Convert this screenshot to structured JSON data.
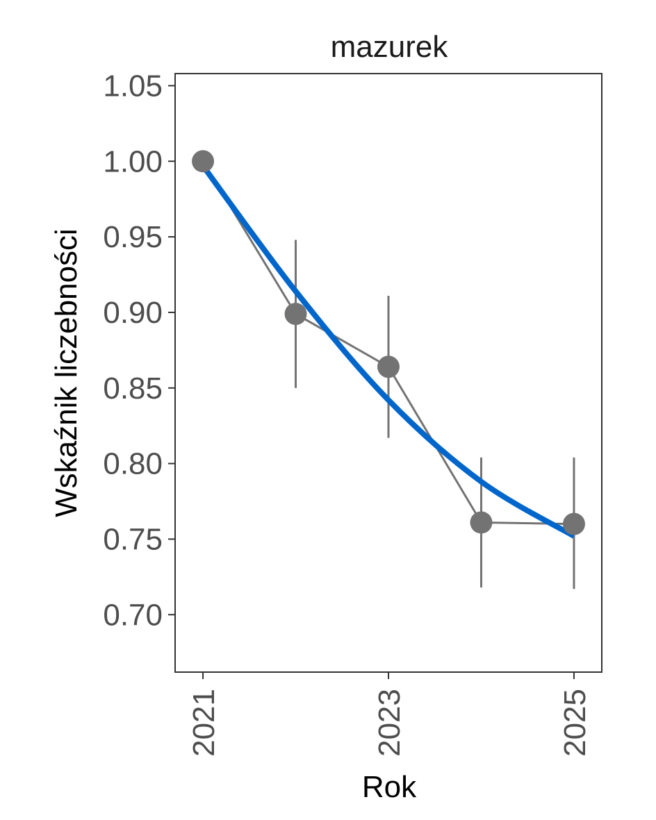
{
  "chart_data": {
    "type": "line",
    "title": "mazurek",
    "xlabel": "Rok",
    "ylabel": "Wskaźnik liczebności",
    "xlim": [
      2020.7,
      2025.3
    ],
    "ylim": [
      0.662,
      1.058
    ],
    "x_ticks": [
      2021,
      2023,
      2025
    ],
    "y_ticks": [
      0.7,
      0.75,
      0.8,
      0.85,
      0.9,
      0.95,
      1.0,
      1.05
    ],
    "x_tick_labels": [
      "2021",
      "2023",
      "2025"
    ],
    "y_tick_labels": [
      "0.70",
      "0.75",
      "0.80",
      "0.85",
      "0.90",
      "0.95",
      "1.00",
      "1.05"
    ],
    "grid": false,
    "series": [
      {
        "type": "points_with_errorbars",
        "color": "#737373",
        "x": [
          2021,
          2022,
          2023,
          2024,
          2025
        ],
        "y": [
          1.0,
          0.899,
          0.864,
          0.761,
          0.76
        ],
        "lower": [
          1.0,
          0.85,
          0.817,
          0.718,
          0.717
        ],
        "upper": [
          1.0,
          0.948,
          0.911,
          0.804,
          0.804
        ]
      },
      {
        "type": "trend",
        "color": "#0066cc",
        "x": [
          2021,
          2022,
          2023,
          2024,
          2025
        ],
        "y": [
          0.997,
          0.914,
          0.842,
          0.788,
          0.752
        ]
      }
    ]
  }
}
